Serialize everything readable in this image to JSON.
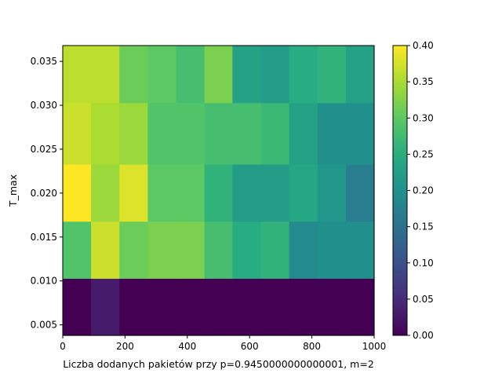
{
  "chart_data": {
    "type": "heatmap",
    "xlabel": "Liczba dodanych pakietów przy p=0.9450000000000001, m=2",
    "ylabel": "T_max",
    "xlim": [
      0,
      1000
    ],
    "ylim": [
      0.0038,
      0.0368
    ],
    "x_ticks": [
      0,
      200,
      400,
      600,
      800,
      1000
    ],
    "y_ticks": [
      0.005,
      0.01,
      0.015,
      0.02,
      0.025,
      0.03,
      0.035
    ],
    "x_tick_labels": [
      "0",
      "200",
      "400",
      "600",
      "800",
      "1000"
    ],
    "y_tick_labels": [
      "0.005",
      "0.010",
      "0.015",
      "0.020",
      "0.025",
      "0.030",
      "0.035"
    ],
    "x_edges": [
      0,
      91,
      182,
      273,
      364,
      455,
      545,
      636,
      727,
      818,
      909,
      1000
    ],
    "y_edges": [
      0.0038,
      0.0103,
      0.0168,
      0.0233,
      0.0303,
      0.0368
    ],
    "colormap": "viridis",
    "colorbar": {
      "min": 0.0,
      "max": 0.4,
      "ticks": [
        0.0,
        0.05,
        0.1,
        0.15,
        0.2,
        0.25,
        0.3,
        0.35,
        0.4
      ],
      "tick_labels": [
        "0.00",
        "0.05",
        "0.10",
        "0.15",
        "0.20",
        "0.25",
        "0.30",
        "0.35",
        "0.40"
      ]
    },
    "values_rows_bottom_to_top": [
      [
        0.0,
        0.03,
        0.0,
        0.0,
        0.0,
        0.0,
        0.0,
        0.0,
        0.0,
        0.0,
        0.0
      ],
      [
        0.29,
        0.37,
        0.31,
        0.32,
        0.32,
        0.28,
        0.25,
        0.26,
        0.19,
        0.2,
        0.2
      ],
      [
        0.4,
        0.34,
        0.38,
        0.3,
        0.3,
        0.26,
        0.22,
        0.22,
        0.24,
        0.21,
        0.17
      ],
      [
        0.37,
        0.35,
        0.34,
        0.29,
        0.29,
        0.28,
        0.28,
        0.27,
        0.23,
        0.2,
        0.2
      ],
      [
        0.36,
        0.36,
        0.31,
        0.3,
        0.28,
        0.32,
        0.23,
        0.22,
        0.25,
        0.26,
        0.23
      ]
    ]
  }
}
